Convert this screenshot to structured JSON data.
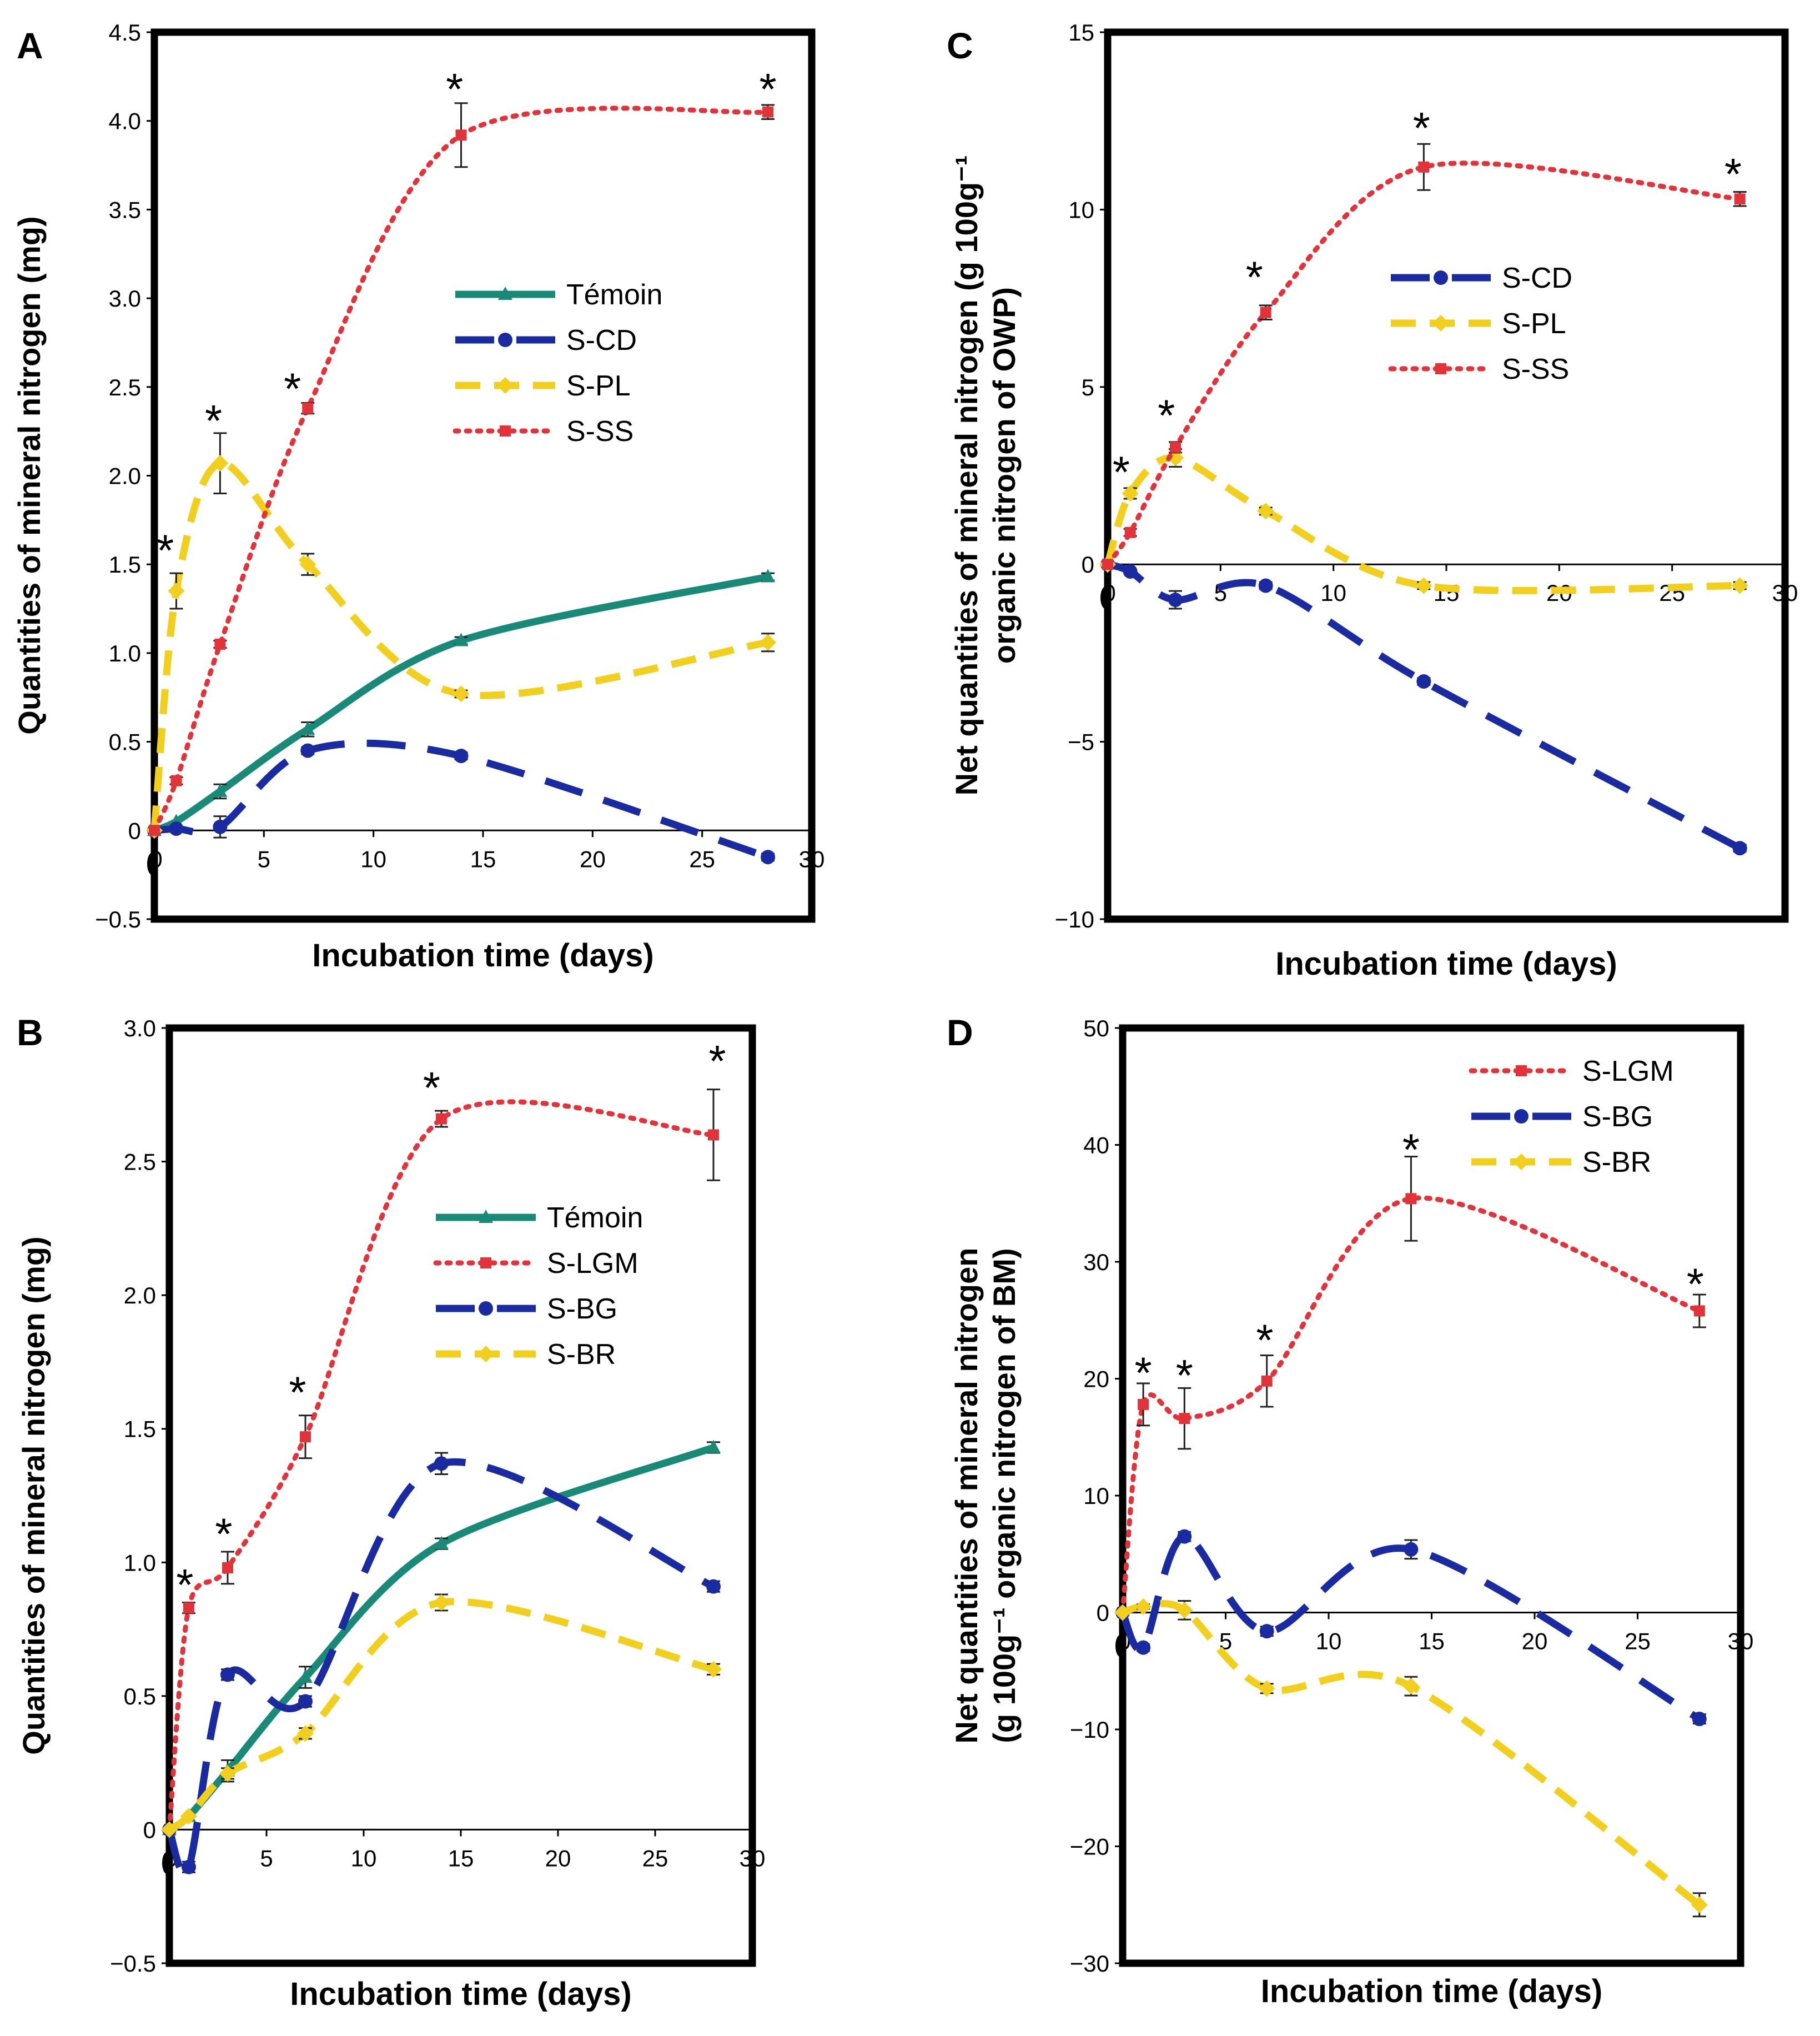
{
  "colors": {
    "temoin": "#1a8a78",
    "blue": "#1a2aa0",
    "yellow": "#f2cf1d",
    "red": "#e3333a",
    "axis": "#000000"
  },
  "chart_data": [
    {
      "id": "A",
      "type": "line",
      "panel_label": "A",
      "xlabel": "Incubation time (days)",
      "ylabel": "Quantities of mineral nitrogen (mg)",
      "xlim": [
        0,
        30
      ],
      "ylim": [
        -0.5,
        4.5
      ],
      "xticks": [
        "5",
        "10",
        "15",
        "20",
        "25",
        "30"
      ],
      "yticks": [
        "−0.5",
        "0",
        "0.5",
        "1.0",
        "1.5",
        "2.0",
        "2.5",
        "3.0",
        "3.5",
        "4.0",
        "4.5"
      ],
      "origin_label": "0",
      "legend_position": "center-right",
      "series": [
        {
          "name": "Témoin",
          "color": "temoin",
          "dash": "solid",
          "marker": "triangle",
          "x": [
            0,
            1,
            3,
            7,
            14,
            28
          ],
          "y": [
            0,
            0.05,
            0.22,
            0.57,
            1.07,
            1.43
          ],
          "err": [
            0,
            0,
            0.04,
            0.04,
            0.02,
            0.02
          ]
        },
        {
          "name": "S-CD",
          "color": "blue",
          "dash": "long",
          "marker": "circle",
          "x": [
            0,
            1,
            3,
            7,
            14,
            28
          ],
          "y": [
            0,
            0.01,
            0.02,
            0.45,
            0.42,
            -0.15
          ],
          "err": [
            0,
            0,
            0.06,
            0.02,
            0.02,
            0.02
          ]
        },
        {
          "name": "S-PL",
          "color": "yellow",
          "dash": "medium",
          "marker": "diamond",
          "x": [
            0,
            1,
            3,
            7,
            14,
            28
          ],
          "y": [
            0,
            1.35,
            2.07,
            1.5,
            0.77,
            1.06
          ],
          "err": [
            0,
            0.1,
            0.17,
            0.06,
            0.02,
            0.05
          ]
        },
        {
          "name": "S-SS",
          "color": "red",
          "dash": "dotted",
          "marker": "square",
          "x": [
            0,
            1,
            3,
            7,
            14,
            28
          ],
          "y": [
            0,
            0.28,
            1.05,
            2.38,
            3.92,
            4.05
          ],
          "err": [
            0,
            0.02,
            0.02,
            0.03,
            0.18,
            0.04
          ]
        }
      ],
      "significance_markers": [
        {
          "label": "*",
          "x": 0.5,
          "y": 1.6
        },
        {
          "label": "*",
          "x": 2.7,
          "y": 2.33
        },
        {
          "label": "*",
          "x": 6.3,
          "y": 2.51
        },
        {
          "label": "*",
          "x": 13.7,
          "y": 4.2
        },
        {
          "label": "*",
          "x": 28,
          "y": 4.2
        }
      ]
    },
    {
      "id": "B",
      "type": "line",
      "panel_label": "B",
      "xlabel": "Incubation time (days)",
      "ylabel": "Quantities of mineral nitrogen (mg)",
      "xlim": [
        0,
        30
      ],
      "ylim": [
        -0.5,
        3.0
      ],
      "xticks": [
        "5",
        "10",
        "15",
        "20",
        "25",
        "30"
      ],
      "yticks": [
        "−0.5",
        "0",
        "0.5",
        "1.0",
        "1.5",
        "2.0",
        "2.5",
        "3.0"
      ],
      "origin_label": "0",
      "legend_position": "center-right",
      "series": [
        {
          "name": "Témoin",
          "color": "temoin",
          "dash": "solid",
          "marker": "triangle",
          "x": [
            0,
            1,
            3,
            7,
            14,
            28
          ],
          "y": [
            0,
            0.05,
            0.22,
            0.57,
            1.07,
            1.43
          ],
          "err": [
            0,
            0,
            0.04,
            0.04,
            0.02,
            0.02
          ]
        },
        {
          "name": "S-LGM",
          "color": "red",
          "dash": "dotted",
          "marker": "square",
          "x": [
            0,
            1,
            3,
            7,
            14,
            28
          ],
          "y": [
            0,
            0.83,
            0.98,
            1.47,
            2.66,
            2.6
          ],
          "err": [
            0,
            0.02,
            0.06,
            0.08,
            0.03,
            0.17
          ]
        },
        {
          "name": "S-BG",
          "color": "blue",
          "dash": "long",
          "marker": "circle",
          "x": [
            0,
            1,
            3,
            7,
            14,
            28
          ],
          "y": [
            0,
            -0.14,
            0.58,
            0.48,
            1.37,
            0.91
          ],
          "err": [
            0,
            0.02,
            0.02,
            0.02,
            0.04,
            0.02
          ]
        },
        {
          "name": "S-BR",
          "color": "yellow",
          "dash": "medium",
          "marker": "diamond",
          "x": [
            0,
            1,
            3,
            7,
            14,
            28
          ],
          "y": [
            0,
            0.05,
            0.21,
            0.36,
            0.85,
            0.6
          ],
          "err": [
            0,
            0,
            0.02,
            0.02,
            0.03,
            0.02
          ]
        }
      ],
      "significance_markers": [
        {
          "label": "*",
          "x": 0.8,
          "y": 0.93
        },
        {
          "label": "*",
          "x": 2.8,
          "y": 1.12
        },
        {
          "label": "*",
          "x": 6.6,
          "y": 1.65
        },
        {
          "label": "*",
          "x": 13.5,
          "y": 2.79
        },
        {
          "label": "*",
          "x": 28.2,
          "y": 2.89
        }
      ]
    },
    {
      "id": "C",
      "type": "line",
      "panel_label": "C",
      "xlabel": "Incubation time (days)",
      "ylabel_lines": [
        "Net quantities of mineral nitrogen (g 100g⁻¹",
        "organic nitrogen of OWP)"
      ],
      "xlim": [
        0,
        30
      ],
      "ylim": [
        -10,
        15
      ],
      "xticks": [
        "5",
        "10",
        "15",
        "20",
        "25",
        "30"
      ],
      "yticks": [
        "−10",
        "−5",
        "0",
        "5",
        "10",
        "15"
      ],
      "origin_label": "0",
      "legend_position": "upper-center",
      "series": [
        {
          "name": "S-CD",
          "color": "blue",
          "dash": "long",
          "marker": "circle",
          "x": [
            0,
            1,
            3,
            7,
            14,
            28
          ],
          "y": [
            0,
            -0.2,
            -1.0,
            -0.6,
            -3.3,
            -8.0
          ],
          "err": [
            0,
            0,
            0.25,
            0.1,
            0.1,
            0.1
          ]
        },
        {
          "name": "S-PL",
          "color": "yellow",
          "dash": "medium",
          "marker": "diamond",
          "x": [
            0,
            1,
            3,
            7,
            14,
            28
          ],
          "y": [
            0,
            2.0,
            3.0,
            1.5,
            -0.6,
            -0.6
          ],
          "err": [
            0,
            0.15,
            0.25,
            0.1,
            0.1,
            0.1
          ]
        },
        {
          "name": "S-SS",
          "color": "red",
          "dash": "dotted",
          "marker": "square",
          "x": [
            0,
            1,
            3,
            7,
            14,
            28
          ],
          "y": [
            0,
            0.9,
            3.3,
            7.1,
            11.2,
            10.3
          ],
          "err": [
            0,
            0.1,
            0.15,
            0.2,
            0.65,
            0.2
          ]
        }
      ],
      "significance_markers": [
        {
          "label": "*",
          "x": 0.6,
          "y": 2.7
        },
        {
          "label": "*",
          "x": 2.6,
          "y": 4.3
        },
        {
          "label": "*",
          "x": 6.5,
          "y": 8.2
        },
        {
          "label": "*",
          "x": 13.9,
          "y": 12.4
        },
        {
          "label": "*",
          "x": 27.7,
          "y": 11.1
        }
      ]
    },
    {
      "id": "D",
      "type": "line",
      "panel_label": "D",
      "xlabel": "Incubation time (days)",
      "ylabel_lines": [
        "Net quantities of mineral nitrogen",
        "(g 100g⁻¹ organic nitrogen of BM)"
      ],
      "xlim": [
        0,
        30
      ],
      "ylim": [
        -30,
        50
      ],
      "xticks": [
        "5",
        "10",
        "15",
        "20",
        "25",
        "30"
      ],
      "yticks": [
        "−30",
        "−20",
        "−10",
        "0",
        "10",
        "20",
        "30",
        "40",
        "50"
      ],
      "origin_label": "0",
      "legend_position": "top-right",
      "series": [
        {
          "name": "S-LGM",
          "color": "red",
          "dash": "dotted",
          "marker": "square",
          "x": [
            0,
            1,
            3,
            7,
            14,
            28
          ],
          "y": [
            0,
            17.8,
            16.6,
            19.8,
            35.4,
            25.8
          ],
          "err": [
            0,
            1.8,
            2.6,
            2.2,
            3.6,
            1.4
          ]
        },
        {
          "name": "S-BG",
          "color": "blue",
          "dash": "long",
          "marker": "circle",
          "x": [
            0,
            1,
            3,
            7,
            14,
            28
          ],
          "y": [
            0,
            -3.0,
            6.5,
            -1.6,
            5.4,
            -9.1
          ],
          "err": [
            0,
            0.3,
            0.4,
            0.4,
            0.8,
            0.4
          ]
        },
        {
          "name": "S-BR",
          "color": "yellow",
          "dash": "medium",
          "marker": "diamond",
          "x": [
            0,
            1,
            3,
            7,
            14,
            28
          ],
          "y": [
            0,
            0.5,
            0.2,
            -6.5,
            -6.3,
            -25.0
          ],
          "err": [
            0,
            0.2,
            0.8,
            0.4,
            0.8,
            1.0
          ]
        }
      ],
      "significance_markers": [
        {
          "label": "*",
          "x": 1.0,
          "y": 20.8
        },
        {
          "label": "*",
          "x": 3.0,
          "y": 20.6
        },
        {
          "label": "*",
          "x": 6.9,
          "y": 23.6
        },
        {
          "label": "*",
          "x": 14.0,
          "y": 39.9
        },
        {
          "label": "*",
          "x": 27.8,
          "y": 28.4
        }
      ]
    }
  ]
}
